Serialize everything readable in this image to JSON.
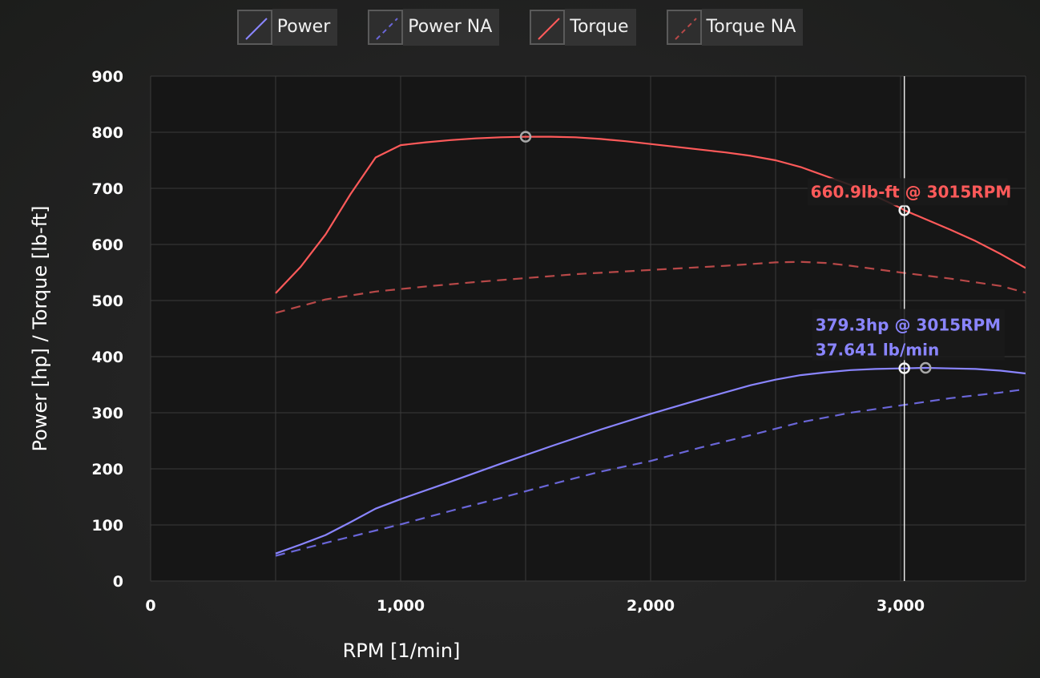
{
  "colors": {
    "power": "#8a85ff",
    "power_na": "#6a66d8",
    "torque": "#ff5a5a",
    "torque_na": "#b84848",
    "plot_bg": "#161616",
    "grid": "#3a3a3a",
    "crosshair": "#e8e8e8"
  },
  "legend": {
    "power": "Power",
    "power_na": "Power NA",
    "torque": "Torque",
    "torque_na": "Torque NA"
  },
  "tooltips": {
    "torque": "660.9lb-ft @ 3015RPM",
    "power_line1": "379.3hp @ 3015RPM",
    "power_line2": "37.641 lb/min"
  },
  "chart_data": {
    "type": "line",
    "xlabel": "RPM [1/min]",
    "ylabel": "Power [hp] / Torque [lb-ft]",
    "xlim": [
      0,
      3500
    ],
    "ylim": [
      0,
      900
    ],
    "x_ticks": [
      0,
      1000,
      2000,
      3000
    ],
    "x_tick_labels": [
      "0",
      "1,000",
      "2,000",
      "3,000"
    ],
    "y_ticks": [
      0,
      100,
      200,
      300,
      400,
      500,
      600,
      700,
      800,
      900
    ],
    "grid": true,
    "legend_position": "top-center",
    "crosshair_x": 3015,
    "series": [
      {
        "name": "Power",
        "key": "power",
        "style": "solid",
        "x": [
          500,
          600,
          700,
          800,
          900,
          1000,
          1200,
          1400,
          1600,
          1800,
          2000,
          2200,
          2400,
          2500,
          2600,
          2700,
          2800,
          2900,
          3000,
          3100,
          3200,
          3300,
          3400,
          3500
        ],
        "y": [
          49,
          65,
          82,
          105,
          129,
          146,
          177,
          209,
          240,
          270,
          298,
          324,
          349,
          359,
          367,
          372,
          376,
          378,
          379,
          380,
          379,
          378,
          375,
          370
        ]
      },
      {
        "name": "Power NA",
        "key": "power_na",
        "style": "dashed",
        "x": [
          500,
          700,
          900,
          1000,
          1200,
          1400,
          1600,
          1800,
          2000,
          2200,
          2400,
          2600,
          2800,
          3000,
          3200,
          3400,
          3500
        ],
        "y": [
          45,
          68,
          90,
          101,
          125,
          148,
          172,
          195,
          214,
          238,
          260,
          283,
          300,
          313,
          326,
          336,
          342
        ]
      },
      {
        "name": "Torque",
        "key": "torque",
        "style": "solid",
        "x": [
          500,
          600,
          700,
          800,
          900,
          1000,
          1100,
          1200,
          1300,
          1400,
          1500,
          1600,
          1700,
          1800,
          1900,
          2000,
          2100,
          2200,
          2300,
          2400,
          2500,
          2600,
          2700,
          2800,
          2900,
          3000,
          3015,
          3100,
          3200,
          3300,
          3400,
          3500
        ],
        "y": [
          513,
          560,
          618,
          690,
          755,
          777,
          782,
          786,
          789,
          791,
          792,
          792,
          791,
          788,
          784,
          779,
          774,
          769,
          764,
          758,
          750,
          738,
          722,
          706,
          686,
          665,
          661,
          645,
          626,
          606,
          583,
          558
        ]
      },
      {
        "name": "Torque NA",
        "key": "torque_na",
        "style": "dashed",
        "x": [
          500,
          700,
          900,
          1100,
          1300,
          1500,
          1700,
          1900,
          2100,
          2300,
          2500,
          2600,
          2700,
          2800,
          3000,
          3200,
          3400,
          3500
        ],
        "y": [
          478,
          502,
          516,
          525,
          533,
          540,
          547,
          552,
          557,
          562,
          568,
          569,
          567,
          562,
          550,
          539,
          526,
          514
        ]
      }
    ],
    "markers": [
      {
        "series": "torque",
        "x": 1500,
        "y": 792
      },
      {
        "series": "torque",
        "x": 3015,
        "y": 660.9
      },
      {
        "series": "power",
        "x": 3015,
        "y": 379.3
      },
      {
        "series": "power",
        "x": 3100,
        "y": 380
      }
    ]
  }
}
